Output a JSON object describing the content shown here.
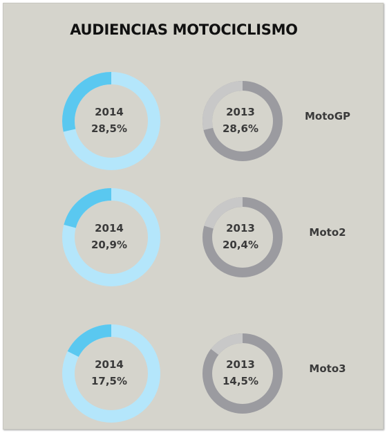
{
  "chart_data": {
    "type": "donut",
    "title": "AUDIENCIAS MOTOCICLISMO",
    "years": [
      "2014",
      "2013"
    ],
    "rows": [
      {
        "category": "MotoGP",
        "values": [
          {
            "year": "2014",
            "value": 28.5,
            "label": "28,5%"
          },
          {
            "year": "2013",
            "value": 28.6,
            "label": "28,6%"
          }
        ]
      },
      {
        "category": "Moto2",
        "values": [
          {
            "year": "2014",
            "value": 20.9,
            "label": "20,9%"
          },
          {
            "year": "2013",
            "value": 20.4,
            "label": "20,4%"
          }
        ]
      },
      {
        "category": "Moto3",
        "values": [
          {
            "year": "2014",
            "value": 17.5,
            "label": "17,5%"
          },
          {
            "year": "2013",
            "value": 14.5,
            "label": "14,5%"
          }
        ]
      }
    ],
    "colors": {
      "2014": {
        "value": "#5ac8f0",
        "remainder": "#b4e6fb"
      },
      "2013": {
        "value": "#c8c8c8",
        "remainder": "#9b9ba0"
      },
      "background": "#d5d4cc"
    }
  }
}
